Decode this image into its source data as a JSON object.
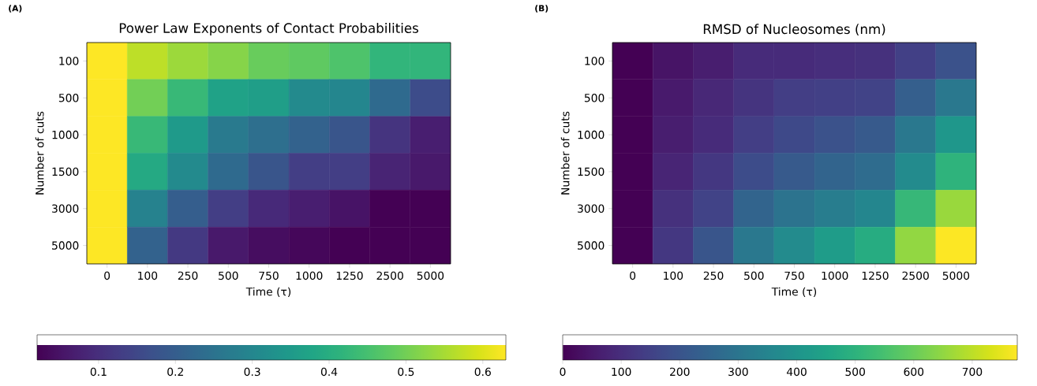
{
  "chart_data": [
    {
      "type": "heatmap",
      "title": "Power Law Exponents of Contact Probabilities",
      "xlabel": "Time (τ)",
      "ylabel": "Number of cuts",
      "annotations": [
        "(A)"
      ],
      "categories": [
        "0",
        "100",
        "250",
        "500",
        "750",
        "1000",
        "1250",
        "2500",
        "5000"
      ],
      "y_categories": [
        "100",
        "500",
        "1000",
        "1500",
        "3000",
        "5000"
      ],
      "cells": [
        [
          0.63,
          0.57,
          0.54,
          0.52,
          0.49,
          0.48,
          0.46,
          0.42,
          0.42
        ],
        [
          0.63,
          0.5,
          0.43,
          0.37,
          0.36,
          0.31,
          0.3,
          0.23,
          0.16
        ],
        [
          0.63,
          0.43,
          0.35,
          0.27,
          0.24,
          0.21,
          0.18,
          0.11,
          0.07
        ],
        [
          0.63,
          0.39,
          0.31,
          0.23,
          0.18,
          0.13,
          0.13,
          0.08,
          0.06
        ],
        [
          0.63,
          0.29,
          0.2,
          0.13,
          0.09,
          0.07,
          0.05,
          0.02,
          0.02
        ],
        [
          0.63,
          0.21,
          0.12,
          0.06,
          0.04,
          0.03,
          0.02,
          0.02,
          0.02
        ]
      ],
      "clim": [
        0.02,
        0.63
      ],
      "cticks": [
        0.1,
        0.2,
        0.3,
        0.4,
        0.5,
        0.6
      ]
    },
    {
      "type": "heatmap",
      "title": "RMSD of Nucleosomes (nm)",
      "xlabel": "Time (τ)",
      "ylabel": "Number of cuts",
      "annotations": [
        "(B)"
      ],
      "categories": [
        "0",
        "100",
        "250",
        "500",
        "750",
        "1000",
        "1250",
        "2500",
        "5000"
      ],
      "y_categories": [
        "100",
        "500",
        "1000",
        "1500",
        "3000",
        "5000"
      ],
      "cells": [
        [
          0,
          39,
          62,
          93,
          93,
          100,
          108,
          147,
          194
        ],
        [
          0,
          54,
          85,
          116,
          140,
          147,
          155,
          232,
          310
        ],
        [
          0,
          62,
          93,
          140,
          170,
          194,
          217,
          310,
          410
        ],
        [
          0,
          78,
          124,
          178,
          217,
          248,
          271,
          372,
          504
        ],
        [
          0,
          108,
          155,
          248,
          294,
          326,
          356,
          519,
          659
        ],
        [
          0,
          124,
          202,
          310,
          372,
          426,
          480,
          651,
          775
        ]
      ],
      "clim": [
        0,
        777
      ],
      "cticks": [
        0,
        100,
        200,
        300,
        400,
        500,
        600,
        700
      ]
    }
  ]
}
